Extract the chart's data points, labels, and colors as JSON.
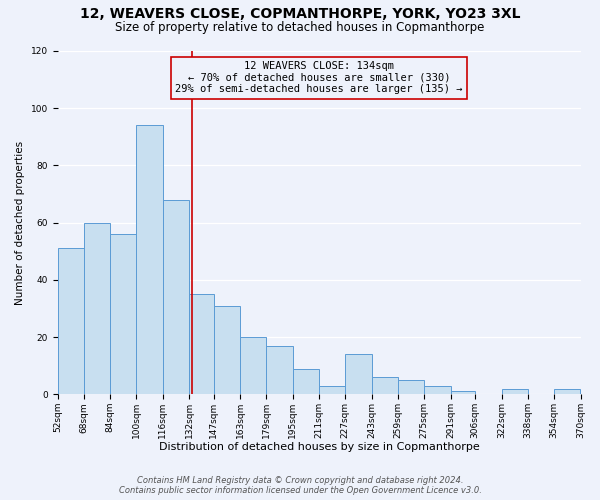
{
  "title": "12, WEAVERS CLOSE, COPMANTHORPE, YORK, YO23 3XL",
  "subtitle": "Size of property relative to detached houses in Copmanthorpe",
  "xlabel": "Distribution of detached houses by size in Copmanthorpe",
  "ylabel": "Number of detached properties",
  "bar_edges": [
    52,
    68,
    84,
    100,
    116,
    132,
    147,
    163,
    179,
    195,
    211,
    227,
    243,
    259,
    275,
    291,
    306,
    322,
    338,
    354,
    370
  ],
  "bar_heights": [
    51,
    60,
    56,
    94,
    68,
    35,
    31,
    20,
    17,
    9,
    3,
    14,
    6,
    5,
    3,
    1,
    0,
    2,
    0,
    2
  ],
  "bar_color": "#c8dff0",
  "bar_edge_color": "#5b9bd5",
  "vline_x": 134,
  "vline_color": "#cc0000",
  "annotation_lines": [
    "12 WEAVERS CLOSE: 134sqm",
    "← 70% of detached houses are smaller (330)",
    "29% of semi-detached houses are larger (135) →"
  ],
  "ylim": [
    0,
    120
  ],
  "yticks": [
    0,
    20,
    40,
    60,
    80,
    100,
    120
  ],
  "tick_labels": [
    "52sqm",
    "68sqm",
    "84sqm",
    "100sqm",
    "116sqm",
    "132sqm",
    "147sqm",
    "163sqm",
    "179sqm",
    "195sqm",
    "211sqm",
    "227sqm",
    "243sqm",
    "259sqm",
    "275sqm",
    "291sqm",
    "306sqm",
    "322sqm",
    "338sqm",
    "354sqm",
    "370sqm"
  ],
  "footer_line1": "Contains HM Land Registry data © Crown copyright and database right 2024.",
  "footer_line2": "Contains public sector information licensed under the Open Government Licence v3.0.",
  "bg_color": "#eef2fb",
  "grid_color": "#ffffff",
  "title_fontsize": 10,
  "subtitle_fontsize": 8.5,
  "axis_label_fontsize": 8,
  "tick_fontsize": 6.5,
  "annotation_fontsize": 7.5,
  "ylabel_fontsize": 7.5
}
